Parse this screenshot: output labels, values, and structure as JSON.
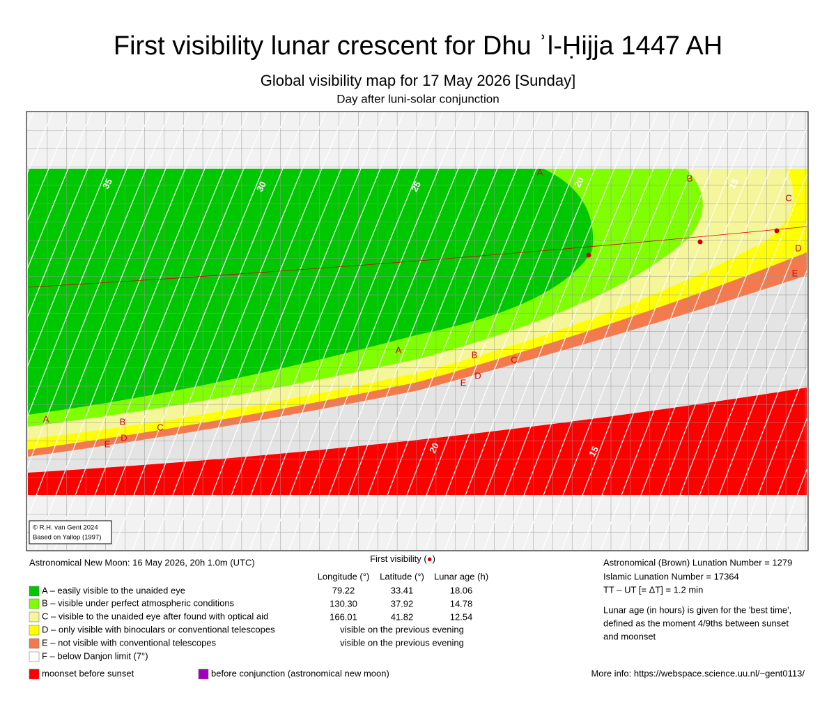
{
  "header": {
    "title": "First visibility lunar crescent for Dhu ʾl-Ḥijja 1447 AH",
    "subtitle": "Global visibility map for 17 May 2026 [Sunday]",
    "subtitle2": "Day after luni-solar conjunction"
  },
  "map": {
    "band_labels": [
      "A",
      "B",
      "C",
      "D",
      "E",
      "A",
      "B",
      "C",
      "D",
      "E",
      "A",
      "B",
      "C",
      "D",
      "E"
    ],
    "contour_labels": [
      "35",
      "30",
      "25",
      "20",
      "15",
      "20",
      "15"
    ],
    "credit": [
      "© R.H. van Gent 2024",
      "Based on Yallop (1997)"
    ]
  },
  "info_left": "Astronomical New Moon: 16 May 2026, 20h 1.0m (UTC)",
  "legend": [
    "A – easily visible to the unaided eye",
    "B – visible under perfect atmospheric conditions",
    "C – visible to the unaided eye after found with optical aid",
    "D – only visible with binoculars or conventional telescopes",
    "E – not visible with conventional telescopes",
    "F – below Danjon limit (7°)",
    "moonset before sunset",
    "before conjunction (astronomical new moon)"
  ],
  "table": {
    "title_prefix": "First visibility (",
    "marker": "●",
    "title_suffix": ")",
    "columns": [
      "Longitude (°)",
      "Latitude (°)",
      "Lunar age (h)"
    ],
    "rows": [
      [
        "79.22",
        "33.41",
        "18.06"
      ],
      [
        "130.30",
        "37.92",
        "14.78"
      ],
      [
        "166.01",
        "41.82",
        "12.54"
      ]
    ],
    "notes": [
      "visible on the previous evening",
      "visible on the previous evening"
    ]
  },
  "info_right": [
    "Astronomical (Brown) Lunation Number = 1279",
    "Islamic Lunation Number = 17364",
    "TT – UT [= ΔT] = 1.2 min",
    "Lunar age (in hours) is given for the 'best time',",
    "defined as the moment 4/9ths between sunset",
    "and moonset"
  ],
  "more_info": "More info: https://webspace.science.uu.nl/~gent0113/"
}
